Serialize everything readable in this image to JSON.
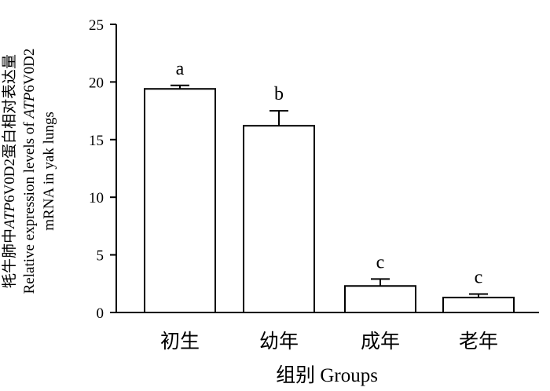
{
  "chart_data": {
    "type": "bar",
    "categories": [
      "初生",
      "幼年",
      "成年",
      "老年"
    ],
    "values": [
      19.4,
      16.2,
      2.3,
      1.3
    ],
    "errors": [
      0.3,
      1.3,
      0.6,
      0.3
    ],
    "significance": [
      "a",
      "b",
      "c",
      "c"
    ],
    "title": "",
    "xlabel": "组别 Groups",
    "ylabel_line1_pre": "牦牛肺中",
    "ylabel_line1_italic": "ATP",
    "ylabel_line1_post": "6V0D2蛋白相对表达量",
    "ylabel_line2_pre": "Relative expression levels of ",
    "ylabel_line2_italic": "ATP",
    "ylabel_line2_post": "6V0D2",
    "ylabel_line3": "mRNA in yak lungs",
    "ylim": [
      0,
      25
    ],
    "yticks": [
      0,
      5,
      10,
      15,
      20,
      25
    ],
    "bar_fill": "#ffffff",
    "bar_stroke": "#000000",
    "grid": false,
    "legend": "none"
  }
}
